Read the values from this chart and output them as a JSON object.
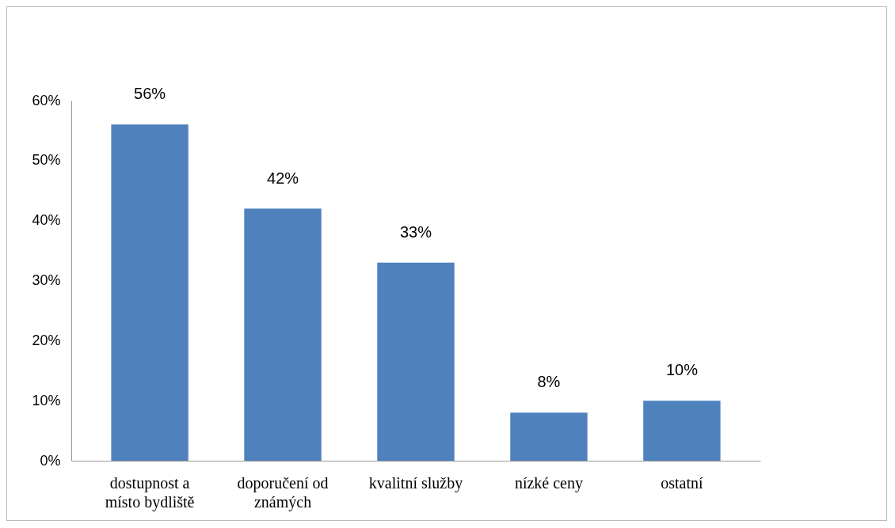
{
  "chart_data": {
    "type": "bar",
    "categories": [
      "dostupnost a místo bydliště",
      "doporučení od známých",
      "kvalitní služby",
      "nízké ceny",
      "ostatní"
    ],
    "values": [
      56,
      42,
      33,
      8,
      10
    ],
    "value_labels": [
      "56%",
      "42%",
      "33%",
      "8%",
      "10%"
    ],
    "color": "#4f81bd",
    "ylim": [
      0,
      60
    ],
    "yticks": [
      {
        "value": 0,
        "label": "0%"
      },
      {
        "value": 10,
        "label": "10%"
      },
      {
        "value": 20,
        "label": "20%"
      },
      {
        "value": 30,
        "label": "30%"
      },
      {
        "value": 40,
        "label": "40%"
      },
      {
        "value": 50,
        "label": "50%"
      },
      {
        "value": 60,
        "label": "60%"
      }
    ]
  }
}
